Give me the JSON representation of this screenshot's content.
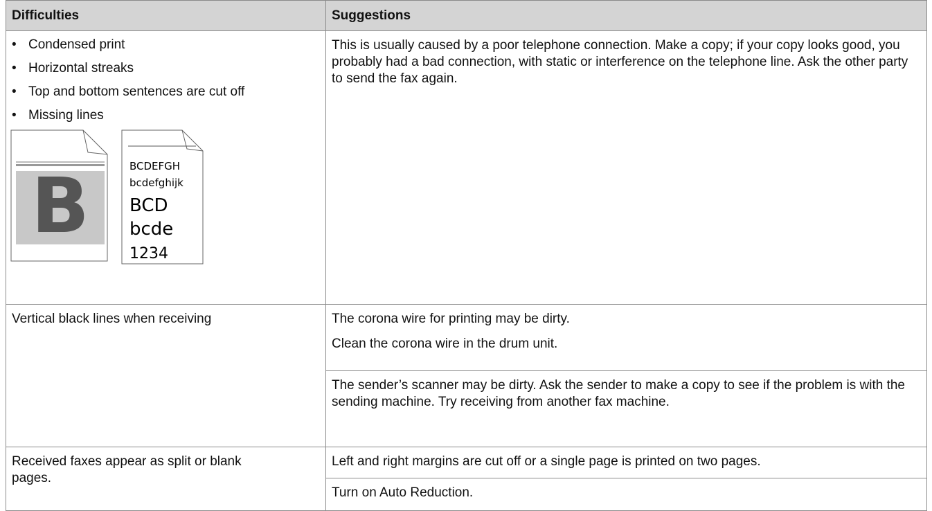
{
  "table": {
    "headers": [
      "Difficulties",
      "Suggestions"
    ],
    "rows": [
      {
        "difficulty": {
          "items": [
            "Condensed print",
            "Horizontal streaks",
            "Top and bottom sentences are cut off",
            "Missing lines"
          ],
          "illustration": {
            "big_letter": "B",
            "lines": [
              "BCDEFGH",
              "bcdefghijk",
              "BCD",
              "bcde",
              "1234"
            ]
          }
        },
        "suggestions": [
          "This is usually caused by a poor telephone connection. Make a copy; if your copy looks good, you probably had a bad connection, with static or interference on the telephone line. Ask the other party to send the fax again."
        ]
      },
      {
        "difficulty": {
          "text": "Vertical black lines when receiving"
        },
        "suggestions": [
          "The corona wire for printing may be dirty.",
          "Clean the corona wire in the drum unit.",
          "The sender’s scanner may be dirty. Ask the sender to make a copy to see if the problem is with the sending machine. Try receiving from another fax machine."
        ]
      },
      {
        "difficulty": {
          "text": "Received faxes appear as split or blank pages."
        },
        "suggestions": [
          "Left and right margins are cut off or a single page is printed on two pages.",
          "Turn on Auto Reduction."
        ]
      }
    ]
  }
}
